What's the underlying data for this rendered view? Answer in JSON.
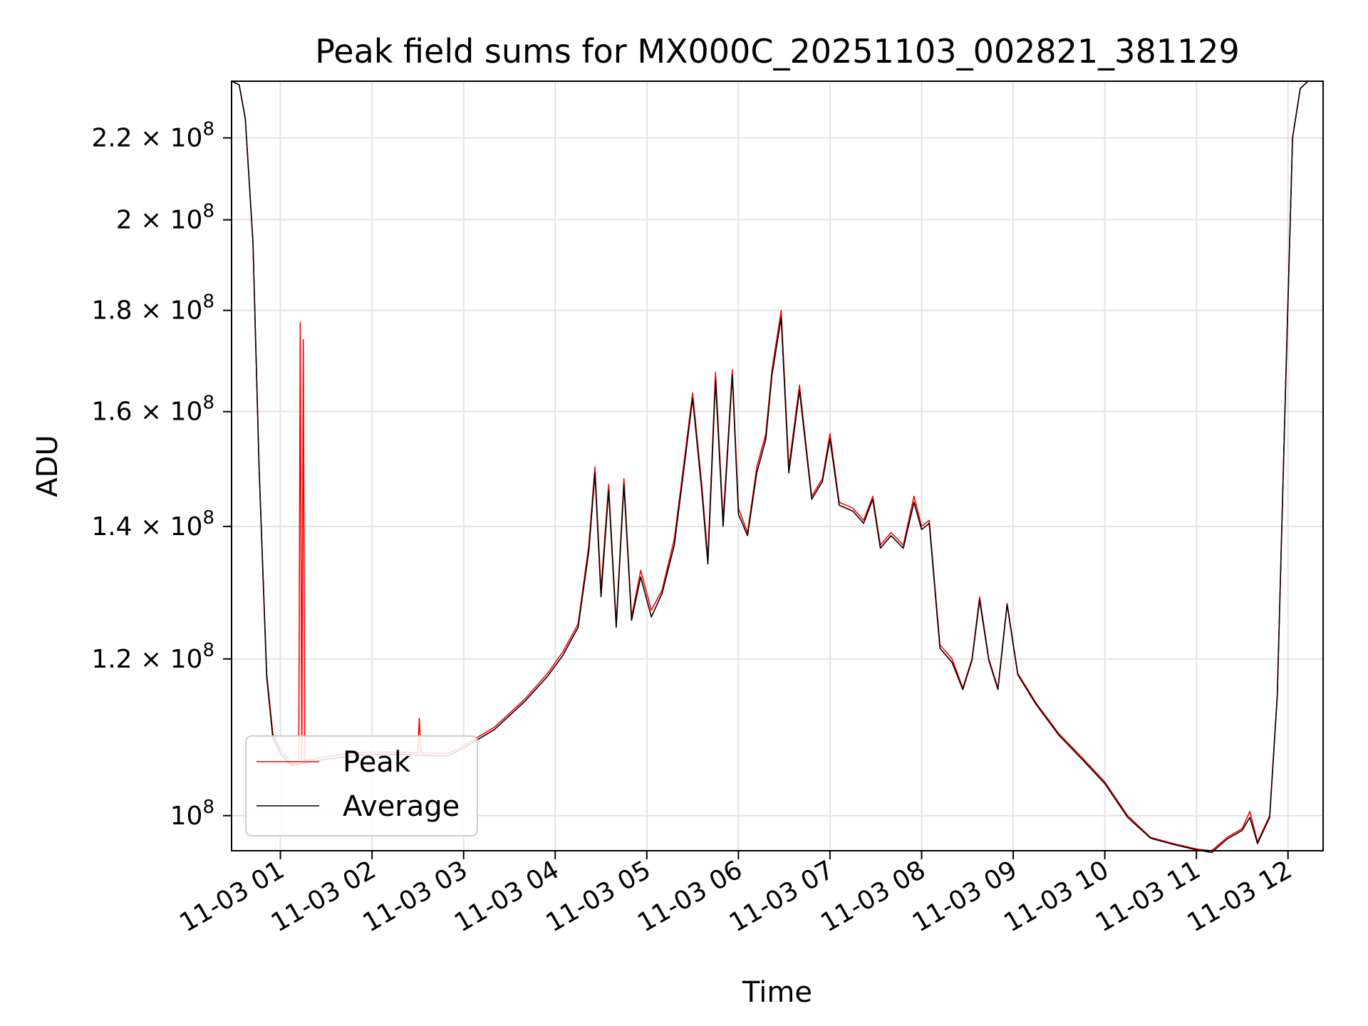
{
  "chart_data": {
    "type": "line",
    "title": "Peak field sums for MX000C_20251103_002821_381129",
    "xlabel": "Time",
    "ylabel": "ADU",
    "y_scale": "log",
    "grid": true,
    "legend_position": "lower-left",
    "xlim": [
      "2025-11-03 00:28",
      "2025-11-03 12:23"
    ],
    "ylim": [
      96000000,
      235000000
    ],
    "x_ticks": [
      {
        "value": "2025-11-03 01:00",
        "label": "11-03 01"
      },
      {
        "value": "2025-11-03 02:00",
        "label": "11-03 02"
      },
      {
        "value": "2025-11-03 03:00",
        "label": "11-03 03"
      },
      {
        "value": "2025-11-03 04:00",
        "label": "11-03 04"
      },
      {
        "value": "2025-11-03 05:00",
        "label": "11-03 05"
      },
      {
        "value": "2025-11-03 06:00",
        "label": "11-03 06"
      },
      {
        "value": "2025-11-03 07:00",
        "label": "11-03 07"
      },
      {
        "value": "2025-11-03 08:00",
        "label": "11-03 08"
      },
      {
        "value": "2025-11-03 09:00",
        "label": "11-03 09"
      },
      {
        "value": "2025-11-03 10:00",
        "label": "11-03 10"
      },
      {
        "value": "2025-11-03 11:00",
        "label": "11-03 11"
      },
      {
        "value": "2025-11-03 12:00",
        "label": "11-03 12"
      }
    ],
    "y_ticks": [
      {
        "value": 100000000,
        "mantissa": "",
        "exponent": "8"
      },
      {
        "value": 120000000,
        "mantissa": "1.2",
        "exponent": "8"
      },
      {
        "value": 140000000,
        "mantissa": "1.4",
        "exponent": "8"
      },
      {
        "value": 160000000,
        "mantissa": "1.6",
        "exponent": "8"
      },
      {
        "value": 180000000,
        "mantissa": "1.8",
        "exponent": "8"
      },
      {
        "value": 200000000,
        "mantissa": "2",
        "exponent": "8"
      },
      {
        "value": 220000000,
        "mantissa": "2.2",
        "exponent": "8"
      }
    ],
    "series": [
      {
        "name": "Peak",
        "color": "#ff0000",
        "points": [
          [
            "2025-11-03 00:28",
            235000000
          ],
          [
            "2025-11-03 00:33",
            234000000
          ],
          [
            "2025-11-03 00:37",
            225000000
          ],
          [
            "2025-11-03 00:42",
            195000000
          ],
          [
            "2025-11-03 00:46",
            150000000
          ],
          [
            "2025-11-03 00:51",
            118000000
          ],
          [
            "2025-11-03 00:55",
            110000000
          ],
          [
            "2025-11-03 01:00",
            108000000
          ],
          [
            "2025-11-03 01:05",
            106800000
          ],
          [
            "2025-11-03 01:08",
            106200000
          ],
          [
            "2025-11-03 01:12",
            106500000
          ],
          [
            "2025-11-03 01:13",
            177500000
          ],
          [
            "2025-11-03 01:14",
            106500000
          ],
          [
            "2025-11-03 01:15",
            174000000
          ],
          [
            "2025-11-03 01:16",
            106600000
          ],
          [
            "2025-11-03 01:30",
            107100000
          ],
          [
            "2025-11-03 01:50",
            107600000
          ],
          [
            "2025-11-03 02:10",
            107700000
          ],
          [
            "2025-11-03 02:30",
            107600000
          ],
          [
            "2025-11-03 02:31",
            112000000
          ],
          [
            "2025-11-03 02:32",
            107600000
          ],
          [
            "2025-11-03 02:50",
            107500000
          ],
          [
            "2025-11-03 03:00",
            108500000
          ],
          [
            "2025-11-03 03:20",
            110800000
          ],
          [
            "2025-11-03 03:40",
            114500000
          ],
          [
            "2025-11-03 03:55",
            118000000
          ],
          [
            "2025-11-03 04:05",
            121000000
          ],
          [
            "2025-11-03 04:15",
            125000000
          ],
          [
            "2025-11-03 04:22",
            137000000
          ],
          [
            "2025-11-03 04:26",
            150000000
          ],
          [
            "2025-11-03 04:30",
            130000000
          ],
          [
            "2025-11-03 04:35",
            147000000
          ],
          [
            "2025-11-03 04:40",
            125000000
          ],
          [
            "2025-11-03 04:45",
            148000000
          ],
          [
            "2025-11-03 04:50",
            126000000
          ],
          [
            "2025-11-03 04:56",
            133000000
          ],
          [
            "2025-11-03 05:03",
            127000000
          ],
          [
            "2025-11-03 05:10",
            130000000
          ],
          [
            "2025-11-03 05:18",
            138000000
          ],
          [
            "2025-11-03 05:24",
            150000000
          ],
          [
            "2025-11-03 05:30",
            163500000
          ],
          [
            "2025-11-03 05:36",
            147000000
          ],
          [
            "2025-11-03 05:40",
            135000000
          ],
          [
            "2025-11-03 05:45",
            167500000
          ],
          [
            "2025-11-03 05:50",
            141000000
          ],
          [
            "2025-11-03 05:56",
            168000000
          ],
          [
            "2025-11-03 06:00",
            143000000
          ],
          [
            "2025-11-03 06:06",
            139000000
          ],
          [
            "2025-11-03 06:12",
            150000000
          ],
          [
            "2025-11-03 06:18",
            156000000
          ],
          [
            "2025-11-03 06:22",
            168000000
          ],
          [
            "2025-11-03 06:28",
            180000000
          ],
          [
            "2025-11-03 06:33",
            150000000
          ],
          [
            "2025-11-03 06:40",
            165000000
          ],
          [
            "2025-11-03 06:48",
            145000000
          ],
          [
            "2025-11-03 06:55",
            148000000
          ],
          [
            "2025-11-03 07:00",
            156000000
          ],
          [
            "2025-11-03 07:06",
            144000000
          ],
          [
            "2025-11-03 07:15",
            143000000
          ],
          [
            "2025-11-03 07:22",
            141000000
          ],
          [
            "2025-11-03 07:28",
            145000000
          ],
          [
            "2025-11-03 07:33",
            137000000
          ],
          [
            "2025-11-03 07:40",
            139000000
          ],
          [
            "2025-11-03 07:48",
            137000000
          ],
          [
            "2025-11-03 07:55",
            145000000
          ],
          [
            "2025-11-03 08:00",
            140000000
          ],
          [
            "2025-11-03 08:05",
            141000000
          ],
          [
            "2025-11-03 08:12",
            122000000
          ],
          [
            "2025-11-03 08:20",
            120000000
          ],
          [
            "2025-11-03 08:27",
            116000000
          ],
          [
            "2025-11-03 08:33",
            120000000
          ],
          [
            "2025-11-03 08:38",
            129000000
          ],
          [
            "2025-11-03 08:44",
            120000000
          ],
          [
            "2025-11-03 08:50",
            116000000
          ],
          [
            "2025-11-03 08:56",
            128000000
          ],
          [
            "2025-11-03 09:03",
            118000000
          ],
          [
            "2025-11-03 09:15",
            114000000
          ],
          [
            "2025-11-03 09:30",
            110000000
          ],
          [
            "2025-11-03 09:45",
            107000000
          ],
          [
            "2025-11-03 10:00",
            104000000
          ],
          [
            "2025-11-03 10:15",
            100000000
          ],
          [
            "2025-11-03 10:30",
            97500000
          ],
          [
            "2025-11-03 10:45",
            96800000
          ],
          [
            "2025-11-03 11:00",
            96200000
          ],
          [
            "2025-11-03 11:10",
            96000000
          ],
          [
            "2025-11-03 11:20",
            97500000
          ],
          [
            "2025-11-03 11:30",
            98500000
          ],
          [
            "2025-11-03 11:35",
            100500000
          ],
          [
            "2025-11-03 11:40",
            97000000
          ],
          [
            "2025-11-03 11:48",
            100000000
          ],
          [
            "2025-11-03 11:53",
            115000000
          ],
          [
            "2025-11-03 11:58",
            160000000
          ],
          [
            "2025-11-03 12:03",
            220000000
          ],
          [
            "2025-11-03 12:08",
            233000000
          ],
          [
            "2025-11-03 12:13",
            235000000
          ],
          [
            "2025-11-03 12:23",
            235000000
          ]
        ]
      },
      {
        "name": "Average",
        "color": "#000000",
        "points": [
          [
            "2025-11-03 00:28",
            235000000
          ],
          [
            "2025-11-03 00:33",
            234000000
          ],
          [
            "2025-11-03 00:37",
            225000000
          ],
          [
            "2025-11-03 00:42",
            195000000
          ],
          [
            "2025-11-03 00:46",
            150000000
          ],
          [
            "2025-11-03 00:51",
            117500000
          ],
          [
            "2025-11-03 00:55",
            109500000
          ],
          [
            "2025-11-03 01:00",
            107500000
          ],
          [
            "2025-11-03 01:05",
            106400000
          ],
          [
            "2025-11-03 01:08",
            106000000
          ],
          [
            "2025-11-03 01:12",
            106200000
          ],
          [
            "2025-11-03 01:16",
            106300000
          ],
          [
            "2025-11-03 01:30",
            106800000
          ],
          [
            "2025-11-03 01:50",
            107300000
          ],
          [
            "2025-11-03 02:10",
            107400000
          ],
          [
            "2025-11-03 02:30",
            107300000
          ],
          [
            "2025-11-03 02:50",
            107200000
          ],
          [
            "2025-11-03 03:00",
            108200000
          ],
          [
            "2025-11-03 03:20",
            110500000
          ],
          [
            "2025-11-03 03:40",
            114200000
          ],
          [
            "2025-11-03 03:55",
            117600000
          ],
          [
            "2025-11-03 04:05",
            120500000
          ],
          [
            "2025-11-03 04:15",
            124500000
          ],
          [
            "2025-11-03 04:22",
            136000000
          ],
          [
            "2025-11-03 04:26",
            149000000
          ],
          [
            "2025-11-03 04:30",
            129000000
          ],
          [
            "2025-11-03 04:35",
            146000000
          ],
          [
            "2025-11-03 04:40",
            124500000
          ],
          [
            "2025-11-03 04:45",
            147000000
          ],
          [
            "2025-11-03 04:50",
            125500000
          ],
          [
            "2025-11-03 04:56",
            132000000
          ],
          [
            "2025-11-03 05:03",
            126000000
          ],
          [
            "2025-11-03 05:10",
            129500000
          ],
          [
            "2025-11-03 05:18",
            137000000
          ],
          [
            "2025-11-03 05:24",
            149000000
          ],
          [
            "2025-11-03 05:30",
            162500000
          ],
          [
            "2025-11-03 05:36",
            146000000
          ],
          [
            "2025-11-03 05:40",
            134000000
          ],
          [
            "2025-11-03 05:45",
            166000000
          ],
          [
            "2025-11-03 05:50",
            140000000
          ],
          [
            "2025-11-03 05:56",
            167000000
          ],
          [
            "2025-11-03 06:00",
            142000000
          ],
          [
            "2025-11-03 06:06",
            138500000
          ],
          [
            "2025-11-03 06:12",
            149000000
          ],
          [
            "2025-11-03 06:18",
            155000000
          ],
          [
            "2025-11-03 06:22",
            167000000
          ],
          [
            "2025-11-03 06:28",
            178500000
          ],
          [
            "2025-11-03 06:33",
            149000000
          ],
          [
            "2025-11-03 06:40",
            164000000
          ],
          [
            "2025-11-03 06:48",
            144500000
          ],
          [
            "2025-11-03 06:55",
            147500000
          ],
          [
            "2025-11-03 07:00",
            155000000
          ],
          [
            "2025-11-03 07:06",
            143500000
          ],
          [
            "2025-11-03 07:15",
            142500000
          ],
          [
            "2025-11-03 07:22",
            140500000
          ],
          [
            "2025-11-03 07:28",
            144500000
          ],
          [
            "2025-11-03 07:33",
            136500000
          ],
          [
            "2025-11-03 07:40",
            138500000
          ],
          [
            "2025-11-03 07:48",
            136500000
          ],
          [
            "2025-11-03 07:55",
            144000000
          ],
          [
            "2025-11-03 08:00",
            139500000
          ],
          [
            "2025-11-03 08:05",
            140500000
          ],
          [
            "2025-11-03 08:12",
            121500000
          ],
          [
            "2025-11-03 08:20",
            119500000
          ],
          [
            "2025-11-03 08:27",
            115800000
          ],
          [
            "2025-11-03 08:33",
            119800000
          ],
          [
            "2025-11-03 08:38",
            128500000
          ],
          [
            "2025-11-03 08:44",
            119800000
          ],
          [
            "2025-11-03 08:50",
            115800000
          ],
          [
            "2025-11-03 08:56",
            127800000
          ],
          [
            "2025-11-03 09:03",
            117800000
          ],
          [
            "2025-11-03 09:15",
            113800000
          ],
          [
            "2025-11-03 09:30",
            109800000
          ],
          [
            "2025-11-03 09:45",
            106800000
          ],
          [
            "2025-11-03 10:00",
            103800000
          ],
          [
            "2025-11-03 10:15",
            99800000
          ],
          [
            "2025-11-03 10:30",
            97400000
          ],
          [
            "2025-11-03 10:45",
            96700000
          ],
          [
            "2025-11-03 11:00",
            96100000
          ],
          [
            "2025-11-03 11:10",
            95800000
          ],
          [
            "2025-11-03 11:20",
            97300000
          ],
          [
            "2025-11-03 11:30",
            98300000
          ],
          [
            "2025-11-03 11:35",
            99800000
          ],
          [
            "2025-11-03 11:40",
            96800000
          ],
          [
            "2025-11-03 11:48",
            99800000
          ],
          [
            "2025-11-03 11:53",
            115000000
          ],
          [
            "2025-11-03 11:58",
            160000000
          ],
          [
            "2025-11-03 12:03",
            220000000
          ],
          [
            "2025-11-03 12:08",
            233000000
          ],
          [
            "2025-11-03 12:13",
            235000000
          ],
          [
            "2025-11-03 12:23",
            235000000
          ]
        ]
      }
    ]
  }
}
